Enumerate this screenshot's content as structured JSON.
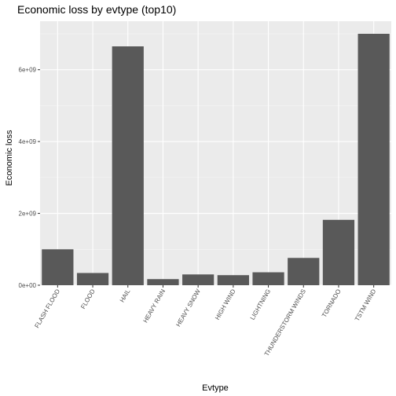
{
  "chart_data": {
    "type": "bar",
    "title": "Economic loss by evtype (top10)",
    "xlabel": "Evtype",
    "ylabel": "Economic loss",
    "categories": [
      "FLASH FLOOD",
      "FLOOD",
      "HAIL",
      "HEAVY RAIN",
      "HEAVY SNOW",
      "HIGH WIND",
      "LIGHTNING",
      "THUNDERSTORM WINDS",
      "TORNADO",
      "TSTM WIND"
    ],
    "values": [
      1000000000,
      340000000,
      6650000000,
      170000000,
      300000000,
      280000000,
      360000000,
      760000000,
      1820000000,
      7000000000
    ],
    "ylim": [
      0,
      7350000000
    ],
    "yticks": [
      0,
      2000000000,
      4000000000,
      6000000000
    ],
    "ytick_labels": [
      "0e+00",
      "2e+09",
      "4e+09",
      "6e+09"
    ],
    "grid": true,
    "bar_color": "#595959",
    "panel_color": "#ebebeb"
  }
}
